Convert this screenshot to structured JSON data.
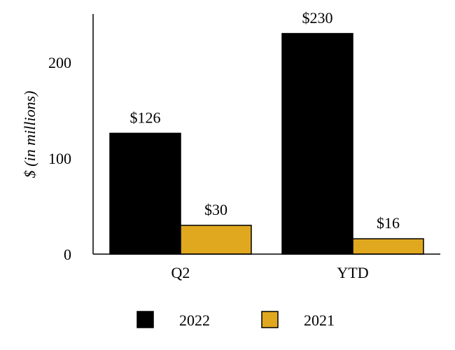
{
  "chart_data": {
    "type": "bar",
    "categories": [
      "Q2",
      "YTD"
    ],
    "series": [
      {
        "name": "2022",
        "values": [
          126,
          230
        ],
        "labels": [
          "$126",
          "$230"
        ],
        "color": "#000000"
      },
      {
        "name": "2021",
        "values": [
          30,
          16
        ],
        "labels": [
          "$30",
          "$16"
        ],
        "color": "#E0A81E"
      }
    ],
    "ylabel": "$ (in millions)",
    "xlabel": "",
    "ylim": [
      0,
      250
    ],
    "yticks": [
      0,
      100,
      200
    ],
    "grid": false,
    "legend_position": "bottom"
  }
}
